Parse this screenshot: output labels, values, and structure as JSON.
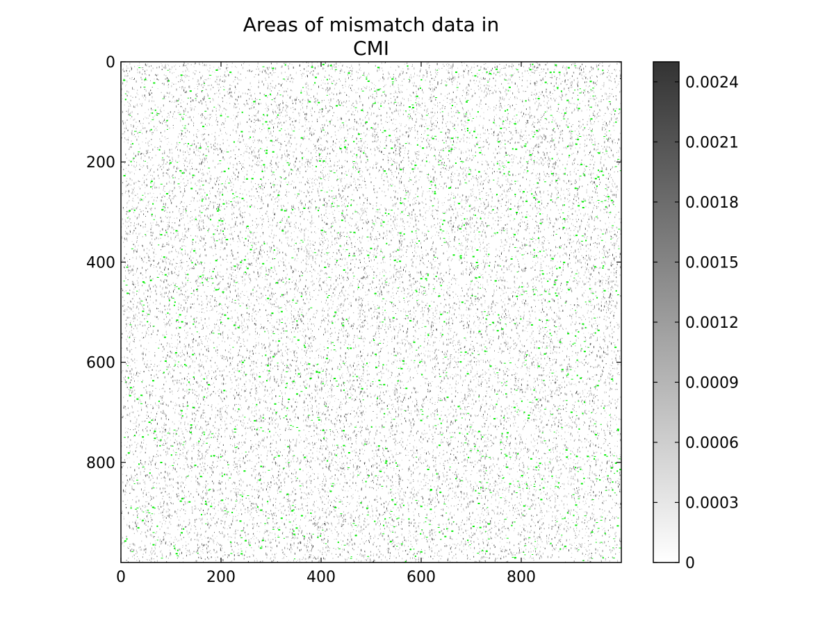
{
  "chart_data": {
    "type": "heatmap",
    "title_lines": [
      "Areas of mismatch data in",
      "CMI"
    ],
    "x_range": [
      0,
      1000
    ],
    "y_range": [
      0,
      1000
    ],
    "y_inverted": true,
    "x_ticks": [
      0,
      200,
      400,
      600,
      800
    ],
    "x_tick_labels": [
      "0",
      "200",
      "400",
      "600",
      "800"
    ],
    "y_ticks": [
      0,
      200,
      400,
      600,
      800
    ],
    "y_tick_labels": [
      "0",
      "200",
      "400",
      "600",
      "800"
    ],
    "colormap": {
      "name": "greys",
      "range": [
        0,
        0.0025
      ],
      "low_color": "#ffffff",
      "high_color": "#333333",
      "ticks": [
        0,
        0.0003,
        0.0006,
        0.0009,
        0.0012,
        0.0015,
        0.0018,
        0.0021,
        0.0024
      ],
      "tick_labels": [
        "0",
        "0.0003",
        "0.0006",
        "0.0009",
        "0.0012",
        "0.0015",
        "0.0018",
        "0.0021",
        "0.0024"
      ]
    },
    "mismatch_color": "#00ee00",
    "texture": "dense fine gray speckle with faint vertical banding; scattered small green mismatch specks throughout"
  }
}
